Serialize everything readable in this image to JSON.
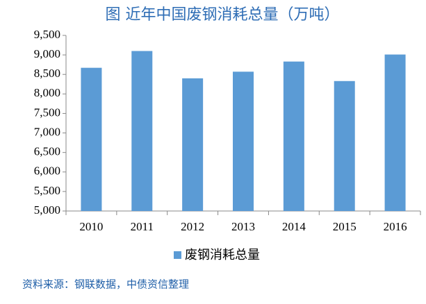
{
  "chart_data": {
    "type": "bar",
    "title": "图 近年中国废钢消耗总量（万吨）",
    "categories": [
      "2010",
      "2011",
      "2012",
      "2013",
      "2014",
      "2015",
      "2016"
    ],
    "series": [
      {
        "name": "废钢消耗总量",
        "color": "#5b9bd5",
        "values": [
          8670,
          9100,
          8400,
          8570,
          8830,
          8330,
          9010
        ]
      }
    ],
    "ylim": [
      5000,
      9500
    ],
    "yticks": [
      {
        "value": 5000,
        "label": "5,000"
      },
      {
        "value": 5500,
        "label": "5,500"
      },
      {
        "value": 6000,
        "label": "6,000"
      },
      {
        "value": 6500,
        "label": "6,500"
      },
      {
        "value": 7000,
        "label": "7,000"
      },
      {
        "value": 7500,
        "label": "7,500"
      },
      {
        "value": 8000,
        "label": "8,000"
      },
      {
        "value": 8500,
        "label": "8,500"
      },
      {
        "value": 9000,
        "label": "9,000"
      },
      {
        "value": 9500,
        "label": "9,500"
      }
    ],
    "grid": false,
    "legend": "bottom",
    "source": "资料来源：钢联数据，中债资信整理"
  }
}
